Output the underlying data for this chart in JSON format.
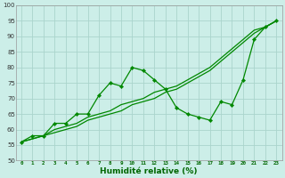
{
  "xlabel": "Humidité relative (%)",
  "bg_color": "#cceee8",
  "grid_color": "#aad4cc",
  "line_color": "#008800",
  "xmin": -0.5,
  "xmax": 23.5,
  "ymin": 50,
  "ymax": 100,
  "yticks": [
    50,
    55,
    60,
    65,
    70,
    75,
    80,
    85,
    90,
    95,
    100
  ],
  "hours": [
    0,
    1,
    2,
    3,
    4,
    5,
    6,
    7,
    8,
    9,
    10,
    11,
    12,
    13,
    14,
    15,
    16,
    17,
    18,
    19,
    20,
    21,
    22,
    23
  ],
  "main_line": [
    56,
    58,
    58,
    62,
    62,
    65,
    65,
    71,
    75,
    74,
    80,
    79,
    76,
    73,
    67,
    65,
    64,
    63,
    69,
    68,
    76,
    89,
    93,
    95
  ],
  "trend1": [
    56,
    57,
    58,
    59,
    60,
    61,
    63,
    64,
    65,
    66,
    68,
    69,
    70,
    72,
    73,
    75,
    77,
    79,
    82,
    85,
    88,
    91,
    93,
    95
  ],
  "trend2": [
    56,
    57,
    58,
    60,
    61,
    62,
    64,
    65,
    66,
    68,
    69,
    70,
    72,
    73,
    74,
    76,
    78,
    80,
    83,
    86,
    89,
    92,
    93,
    95
  ]
}
